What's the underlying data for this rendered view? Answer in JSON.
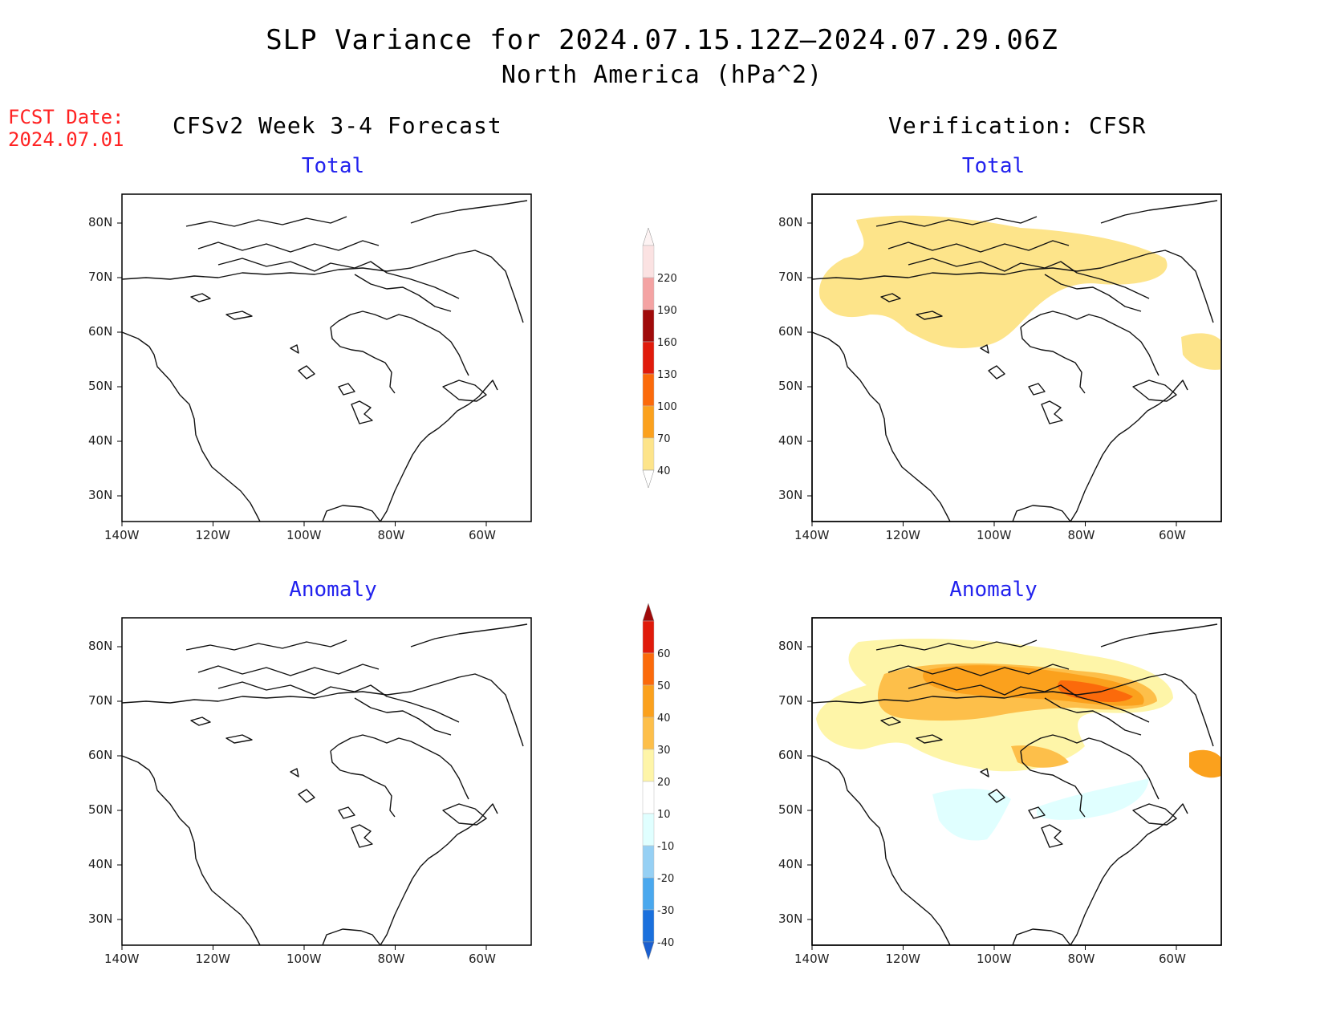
{
  "title": "SLP Variance for 2024.07.15.12Z–2024.07.29.06Z",
  "subtitle": "North America (hPa^2)",
  "fcst_label": "FCST Date:",
  "fcst_date": "2024.07.01",
  "left_heading": "CFSv2 Week 3-4 Forecast",
  "right_heading": "Verification: CFSR",
  "panel_titles": {
    "total": "Total",
    "anomaly": "Anomaly"
  },
  "lat_ticks": [
    "80N",
    "70N",
    "60N",
    "50N",
    "40N",
    "30N"
  ],
  "lon_ticks": [
    "140W",
    "120W",
    "100W",
    "80W",
    "60W"
  ],
  "total_colorbar": {
    "levels": [
      "40",
      "70",
      "100",
      "130",
      "160",
      "190",
      "220"
    ],
    "colors": [
      "#fde48a",
      "#fba11d",
      "#fb6a0b",
      "#e01a0b",
      "#a00a0a",
      "#f4a3a3",
      "#fbe2e2"
    ]
  },
  "anomaly_colorbar": {
    "levels": [
      "60",
      "50",
      "40",
      "30",
      "20",
      "10",
      "-10",
      "-20",
      "-30",
      "-40"
    ],
    "colors": [
      "#a00a0a",
      "#e01a0b",
      "#fb6a0b",
      "#fba11d",
      "#fdbf4a",
      "#fef5a8",
      "#ffffff",
      "#e0ffff",
      "#96d0f4",
      "#4aa8ee",
      "#1a70dd"
    ]
  },
  "chart_data": {
    "type": "heatmap",
    "panels": [
      {
        "name": "CFSv2 Week 3-4 Forecast Total",
        "shading": "none"
      },
      {
        "name": "CFSv2 Week 3-4 Forecast Anomaly",
        "shading": "none"
      },
      {
        "name": "Verification CFSR Total",
        "shading": "40-70 over northern Canada Arctic, Hudson Bay region, Labrador Sea coast"
      },
      {
        "name": "Verification CFSR Anomaly",
        "shading": "10-50 over Canadian Arctic, max near 50 north of Hudson Bay; -10 to -20 over central US and Great Lakes"
      }
    ],
    "xlim": [
      "140W",
      "50W"
    ],
    "ylim": [
      "25N",
      "85N"
    ]
  }
}
